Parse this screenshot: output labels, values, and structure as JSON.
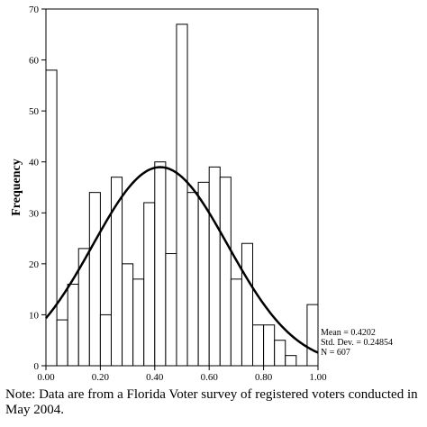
{
  "chart_data": {
    "type": "bar",
    "title": "",
    "xlabel": "",
    "ylabel": "Frequency",
    "xlim": [
      0,
      1
    ],
    "ylim": [
      0,
      70
    ],
    "bin_width": 0.04,
    "bin_starts": [
      0.0,
      0.04,
      0.08,
      0.12,
      0.16,
      0.2,
      0.24,
      0.28,
      0.32,
      0.36,
      0.4,
      0.44,
      0.48,
      0.52,
      0.56,
      0.6,
      0.64,
      0.68,
      0.72,
      0.76,
      0.8,
      0.84,
      0.88,
      0.92,
      0.96
    ],
    "values": [
      58,
      9,
      16,
      23,
      34,
      10,
      37,
      20,
      17,
      32,
      40,
      22,
      67,
      34,
      36,
      39,
      37,
      17,
      24,
      8,
      8,
      5,
      2,
      0,
      12
    ],
    "x_ticks": [
      0,
      0.2,
      0.4,
      0.6,
      0.8,
      1.0
    ],
    "x_tick_labels": [
      "0.00",
      "0.20",
      "0.40",
      "0.60",
      "0.80",
      "1.00"
    ],
    "y_ticks": [
      0,
      10,
      20,
      30,
      40,
      50,
      60,
      70
    ],
    "y_tick_labels": [
      "0",
      "10",
      "20",
      "30",
      "40",
      "50",
      "60",
      "70"
    ],
    "normal_curve": {
      "mean": 0.4202,
      "std_dev": 0.24854,
      "n": 607
    },
    "stats_labels": [
      "Mean = 0.4202",
      "Std. Dev. = 0.24854",
      "N = 607"
    ],
    "grid": false
  },
  "note": {
    "line1": "Note: Data are from a Florida Voter survey of registered voters conducted in",
    "line2": "May 2004."
  }
}
